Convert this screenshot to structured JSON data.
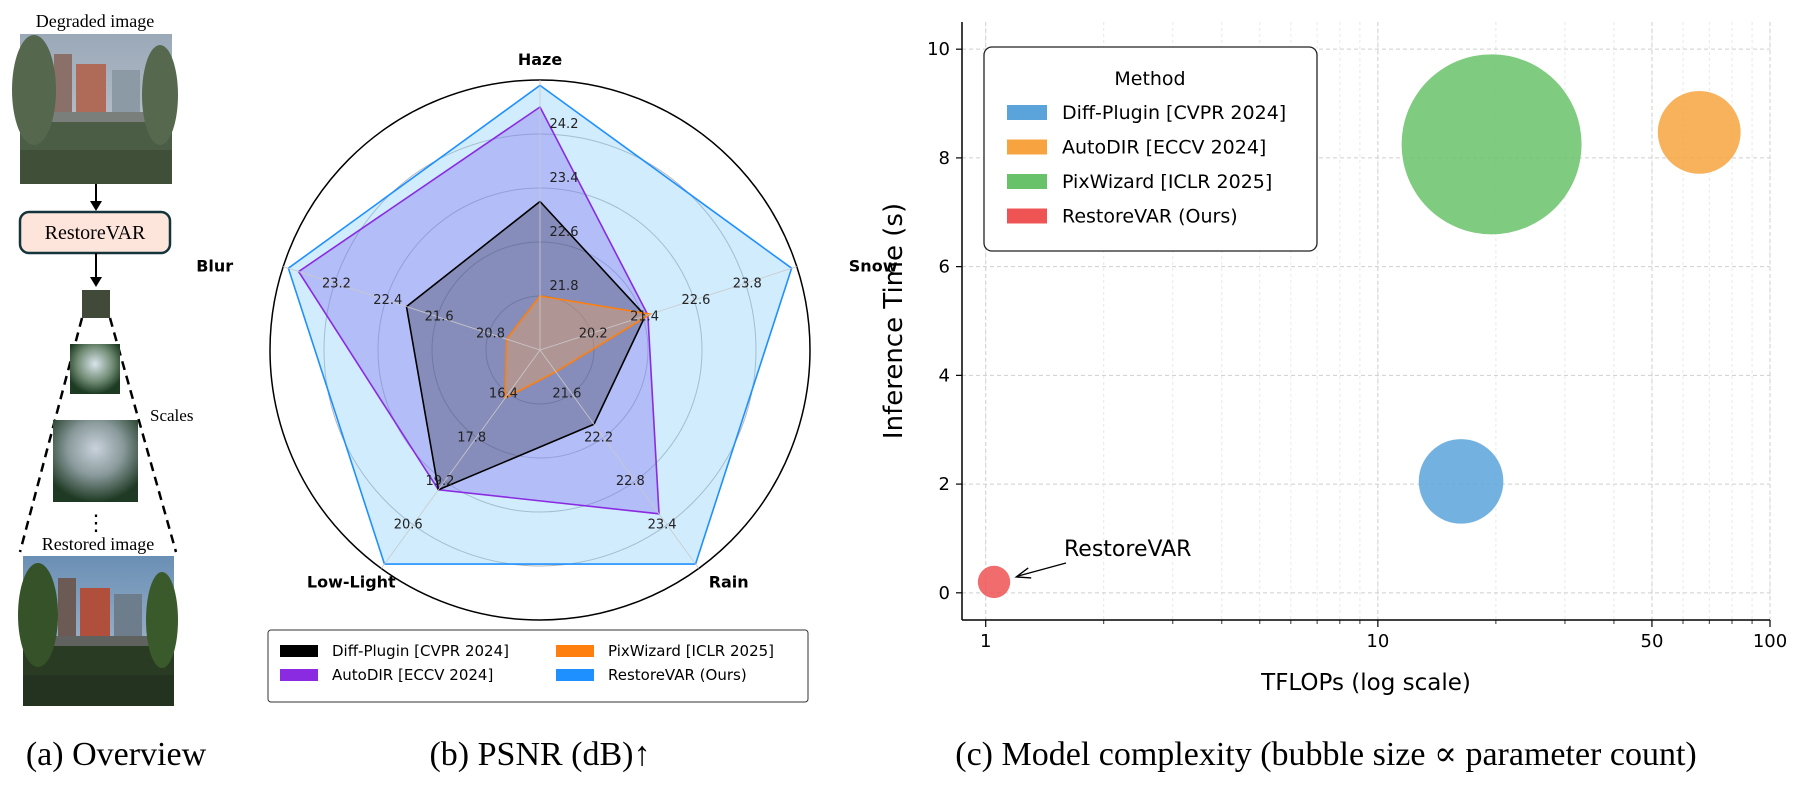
{
  "overview": {
    "top_label": "Degraded image",
    "model_label": "RestoreVAR",
    "scales_label": "Scales",
    "ellipsis": "⋮",
    "bottom_label": "Restored image",
    "caption": "(a) Overview"
  },
  "radar_caption": "(b) PSNR (dB)↑",
  "bubble_caption": "(c) Model complexity (bubble size ∝ parameter count)",
  "chart_data": [
    {
      "type": "radar",
      "axes": [
        "Haze",
        "Snow",
        "Rain",
        "Low-Light",
        "Blur"
      ],
      "axis_ticks": {
        "Haze": [
          "21.8",
          "22.6",
          "23.4",
          "24.2"
        ],
        "Snow": [
          "20.2",
          "21.4",
          "22.6",
          "23.8"
        ],
        "Rain": [
          "21.6",
          "22.2",
          "22.8",
          "23.4"
        ],
        "Low-Light": [
          "16.4",
          "17.8",
          "19.2",
          "20.6"
        ],
        "Blur": [
          "20.8",
          "21.6",
          "22.4",
          "23.2"
        ]
      },
      "series": [
        {
          "name": "Diff-Plugin [CVPR 2024]",
          "color": "#000000",
          "fill": "#000000",
          "fill_alpha": 0.25,
          "normalized": [
            0.55,
            0.41,
            0.34,
            0.64,
            0.52
          ]
        },
        {
          "name": "AutoDIR [ECCV 2024]",
          "color": "#8a2be2",
          "fill": "#7b68ee",
          "fill_alpha": 0.35,
          "normalized": [
            0.9,
            0.42,
            0.75,
            0.64,
            0.94
          ]
        },
        {
          "name": "PixWizard [ICLR 2025]",
          "color": "#ff7f0e",
          "fill": "#ffa54f",
          "fill_alpha": 0.35,
          "normalized": [
            0.2,
            0.43,
            0.1,
            0.22,
            0.13
          ]
        },
        {
          "name": "RestoreVAR (Ours)",
          "color": "#1e90ff",
          "fill": "#87cefa",
          "fill_alpha": 0.38,
          "normalized": [
            0.98,
            0.98,
            0.98,
            0.98,
            0.98
          ]
        }
      ],
      "legend_position": "bottom"
    },
    {
      "type": "scatter",
      "xlabel": "TFLOPs (log scale)",
      "ylabel": "Inference Time (s)",
      "x_scale": "log",
      "xlim": [
        0.87,
        100
      ],
      "ylim": [
        -0.5,
        10.5
      ],
      "x_ticks": [
        1,
        10,
        50,
        100
      ],
      "y_ticks": [
        0,
        2,
        4,
        6,
        8,
        10
      ],
      "grid": true,
      "legend_title": "Method",
      "legend_position": "top-left",
      "annotation": "RestoreVAR",
      "series": [
        {
          "name": "Diff-Plugin [CVPR 2024]",
          "color": "#5ba4db",
          "x": 16.3,
          "y": 2.05,
          "size": 0.47
        },
        {
          "name": "AutoDIR [ECCV 2024]",
          "color": "#f7a440",
          "x": 66,
          "y": 8.47,
          "size": 0.46
        },
        {
          "name": "PixWizard [ICLR 2025]",
          "color": "#68c26a",
          "x": 19.5,
          "y": 8.25,
          "size": 1.0
        },
        {
          "name": "RestoreVAR (Ours)",
          "color": "#ef5454",
          "x": 1.05,
          "y": 0.2,
          "size": 0.18
        }
      ]
    }
  ]
}
